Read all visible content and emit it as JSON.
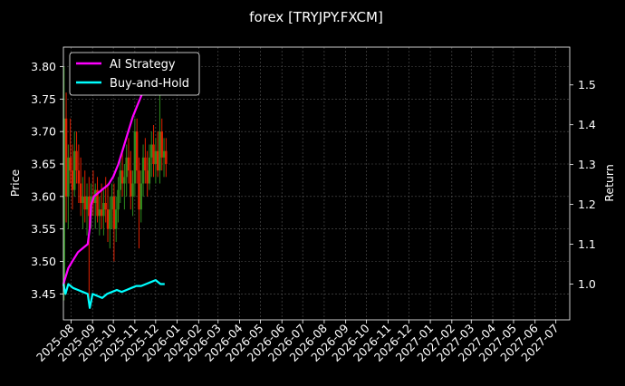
{
  "chart_data": {
    "type": "line",
    "title": "forex [TRYJPY.FXCM]",
    "ylabel_left": "Price",
    "ylabel_right": "Return",
    "xlabel": "",
    "x_tick_labels": [
      "2025-08",
      "2025-09",
      "2025-10",
      "2025-11",
      "2025-12",
      "2026-01",
      "2026-02",
      "2026-03",
      "2026-04",
      "2026-05",
      "2026-06",
      "2026-07",
      "2026-08",
      "2026-09",
      "2026-10",
      "2026-11",
      "2026-12",
      "2027-01",
      "2027-02",
      "2027-03",
      "2027-04",
      "2027-05",
      "2027-06",
      "2027-07"
    ],
    "xlim": [
      "2025-07-21",
      "2027-07-21"
    ],
    "ylim_left": [
      3.41,
      3.83
    ],
    "ylim_right": [
      0.91,
      1.595
    ],
    "y_ticks_left": [
      3.45,
      3.5,
      3.55,
      3.6,
      3.65,
      3.7,
      3.75,
      3.8
    ],
    "y_ticks_right": [
      1.0,
      1.1,
      1.2,
      1.3,
      1.4,
      1.5
    ],
    "grid": true,
    "legend_position": "top-left",
    "candles": {
      "up_color": "#2e8b1e",
      "down_color": "#e02000",
      "points": [
        {
          "date": "2025-07-22",
          "open": 3.45,
          "high": 3.8,
          "low": 3.44,
          "close": 3.72
        },
        {
          "date": "2025-07-25",
          "open": 3.72,
          "high": 3.76,
          "low": 3.56,
          "close": 3.6
        },
        {
          "date": "2025-07-28",
          "open": 3.6,
          "high": 3.68,
          "low": 3.55,
          "close": 3.66
        },
        {
          "date": "2025-07-31",
          "open": 3.66,
          "high": 3.72,
          "low": 3.62,
          "close": 3.64
        },
        {
          "date": "2025-08-03",
          "open": 3.64,
          "high": 3.68,
          "low": 3.58,
          "close": 3.61
        },
        {
          "date": "2025-08-06",
          "open": 3.61,
          "high": 3.7,
          "low": 3.6,
          "close": 3.67
        },
        {
          "date": "2025-08-09",
          "open": 3.67,
          "high": 3.7,
          "low": 3.62,
          "close": 3.64
        },
        {
          "date": "2025-08-12",
          "open": 3.64,
          "high": 3.68,
          "low": 3.59,
          "close": 3.62
        },
        {
          "date": "2025-08-15",
          "open": 3.62,
          "high": 3.66,
          "low": 3.57,
          "close": 3.59
        },
        {
          "date": "2025-08-18",
          "open": 3.59,
          "high": 3.63,
          "low": 3.55,
          "close": 3.6
        },
        {
          "date": "2025-08-21",
          "open": 3.6,
          "high": 3.64,
          "low": 3.56,
          "close": 3.58
        },
        {
          "date": "2025-08-24",
          "open": 3.58,
          "high": 3.62,
          "low": 3.54,
          "close": 3.6
        },
        {
          "date": "2025-08-27",
          "open": 3.6,
          "high": 3.63,
          "low": 3.43,
          "close": 3.57
        },
        {
          "date": "2025-08-30",
          "open": 3.57,
          "high": 3.62,
          "low": 3.55,
          "close": 3.6
        },
        {
          "date": "2025-09-02",
          "open": 3.6,
          "high": 3.64,
          "low": 3.57,
          "close": 3.59
        },
        {
          "date": "2025-09-05",
          "open": 3.59,
          "high": 3.62,
          "low": 3.55,
          "close": 3.61
        },
        {
          "date": "2025-09-08",
          "open": 3.61,
          "high": 3.63,
          "low": 3.56,
          "close": 3.57
        },
        {
          "date": "2025-09-11",
          "open": 3.57,
          "high": 3.6,
          "low": 3.54,
          "close": 3.58
        },
        {
          "date": "2025-09-14",
          "open": 3.58,
          "high": 3.62,
          "low": 3.55,
          "close": 3.57
        },
        {
          "date": "2025-09-17",
          "open": 3.57,
          "high": 3.61,
          "low": 3.54,
          "close": 3.59
        },
        {
          "date": "2025-09-20",
          "open": 3.59,
          "high": 3.63,
          "low": 3.56,
          "close": 3.58
        },
        {
          "date": "2025-09-23",
          "open": 3.58,
          "high": 3.62,
          "low": 3.53,
          "close": 3.55
        },
        {
          "date": "2025-09-26",
          "open": 3.55,
          "high": 3.6,
          "low": 3.52,
          "close": 3.58
        },
        {
          "date": "2025-09-29",
          "open": 3.58,
          "high": 3.62,
          "low": 3.55,
          "close": 3.6
        },
        {
          "date": "2025-10-02",
          "open": 3.6,
          "high": 3.62,
          "low": 3.5,
          "close": 3.55
        },
        {
          "date": "2025-10-05",
          "open": 3.55,
          "high": 3.6,
          "low": 3.53,
          "close": 3.58
        },
        {
          "date": "2025-10-08",
          "open": 3.58,
          "high": 3.63,
          "low": 3.56,
          "close": 3.61
        },
        {
          "date": "2025-10-11",
          "open": 3.61,
          "high": 3.66,
          "low": 3.59,
          "close": 3.64
        },
        {
          "date": "2025-10-14",
          "open": 3.64,
          "high": 3.67,
          "low": 3.6,
          "close": 3.62
        },
        {
          "date": "2025-10-17",
          "open": 3.62,
          "high": 3.65,
          "low": 3.58,
          "close": 3.63
        },
        {
          "date": "2025-10-20",
          "open": 3.63,
          "high": 3.68,
          "low": 3.6,
          "close": 3.66
        },
        {
          "date": "2025-10-23",
          "open": 3.66,
          "high": 3.69,
          "low": 3.62,
          "close": 3.64
        },
        {
          "date": "2025-10-26",
          "open": 3.64,
          "high": 3.67,
          "low": 3.58,
          "close": 3.6
        },
        {
          "date": "2025-10-29",
          "open": 3.6,
          "high": 3.64,
          "low": 3.57,
          "close": 3.62
        },
        {
          "date": "2025-11-01",
          "open": 3.62,
          "high": 3.72,
          "low": 3.6,
          "close": 3.7
        },
        {
          "date": "2025-11-04",
          "open": 3.7,
          "high": 3.72,
          "low": 3.62,
          "close": 3.64
        },
        {
          "date": "2025-11-07",
          "open": 3.64,
          "high": 3.66,
          "low": 3.52,
          "close": 3.58
        },
        {
          "date": "2025-11-10",
          "open": 3.58,
          "high": 3.64,
          "low": 3.56,
          "close": 3.62
        },
        {
          "date": "2025-11-13",
          "open": 3.62,
          "high": 3.68,
          "low": 3.6,
          "close": 3.66
        },
        {
          "date": "2025-11-16",
          "open": 3.66,
          "high": 3.69,
          "low": 3.62,
          "close": 3.64
        },
        {
          "date": "2025-11-19",
          "open": 3.64,
          "high": 3.67,
          "low": 3.6,
          "close": 3.62
        },
        {
          "date": "2025-11-22",
          "open": 3.62,
          "high": 3.68,
          "low": 3.61,
          "close": 3.66
        },
        {
          "date": "2025-11-25",
          "open": 3.66,
          "high": 3.7,
          "low": 3.63,
          "close": 3.68
        },
        {
          "date": "2025-11-28",
          "open": 3.68,
          "high": 3.71,
          "low": 3.63,
          "close": 3.65
        },
        {
          "date": "2025-12-01",
          "open": 3.65,
          "high": 3.69,
          "low": 3.62,
          "close": 3.67
        },
        {
          "date": "2025-12-04",
          "open": 3.67,
          "high": 3.7,
          "low": 3.63,
          "close": 3.64
        },
        {
          "date": "2025-12-07",
          "open": 3.64,
          "high": 3.78,
          "low": 3.62,
          "close": 3.7
        },
        {
          "date": "2025-12-10",
          "open": 3.7,
          "high": 3.72,
          "low": 3.64,
          "close": 3.66
        },
        {
          "date": "2025-12-13",
          "open": 3.66,
          "high": 3.69,
          "low": 3.63,
          "close": 3.67
        },
        {
          "date": "2025-12-16",
          "open": 3.67,
          "high": 3.69,
          "low": 3.63,
          "close": 3.65
        }
      ]
    },
    "series": [
      {
        "name": "AI Strategy",
        "axis": "right",
        "color": "#ff00ff",
        "x": [
          "2025-07-21",
          "2025-07-28",
          "2025-08-04",
          "2025-08-11",
          "2025-08-18",
          "2025-08-25",
          "2025-08-28",
          "2025-08-30",
          "2025-09-03",
          "2025-09-10",
          "2025-09-17",
          "2025-09-24",
          "2025-10-01",
          "2025-10-08",
          "2025-10-15",
          "2025-10-22",
          "2025-10-29",
          "2025-11-05",
          "2025-11-12",
          "2025-11-19",
          "2025-11-26",
          "2025-12-03",
          "2025-12-10",
          "2025-12-14"
        ],
        "values": [
          1.0,
          1.04,
          1.06,
          1.08,
          1.09,
          1.1,
          1.14,
          1.2,
          1.22,
          1.23,
          1.24,
          1.25,
          1.27,
          1.3,
          1.34,
          1.38,
          1.42,
          1.45,
          1.48,
          1.5,
          1.52,
          1.54,
          1.56,
          1.57
        ]
      },
      {
        "name": "Buy-and-Hold",
        "axis": "right",
        "color": "#00ffff",
        "x": [
          "2025-07-21",
          "2025-07-24",
          "2025-07-28",
          "2025-08-04",
          "2025-08-11",
          "2025-08-18",
          "2025-08-25",
          "2025-08-28",
          "2025-09-01",
          "2025-09-08",
          "2025-09-15",
          "2025-09-22",
          "2025-09-29",
          "2025-10-06",
          "2025-10-13",
          "2025-10-20",
          "2025-10-27",
          "2025-11-03",
          "2025-11-10",
          "2025-11-17",
          "2025-11-24",
          "2025-12-01",
          "2025-12-08",
          "2025-12-14"
        ],
        "values": [
          1.0,
          0.975,
          1.0,
          0.99,
          0.985,
          0.98,
          0.975,
          0.94,
          0.975,
          0.97,
          0.965,
          0.975,
          0.98,
          0.985,
          0.98,
          0.985,
          0.99,
          0.995,
          0.995,
          1.0,
          1.005,
          1.01,
          1.0,
          1.0
        ]
      }
    ]
  }
}
